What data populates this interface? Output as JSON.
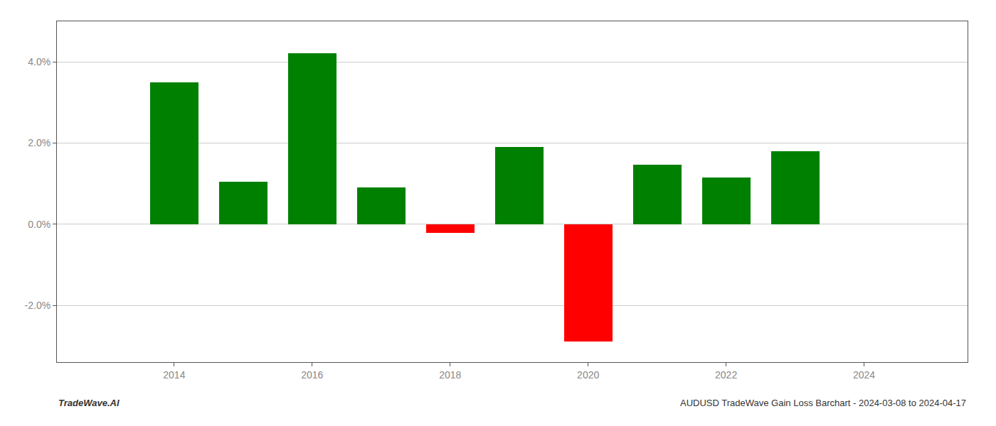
{
  "chart_data": {
    "type": "bar",
    "x": [
      2014,
      2015,
      2016,
      2017,
      2018,
      2019,
      2020,
      2021,
      2022,
      2023
    ],
    "values": [
      0.0349,
      0.0105,
      0.0422,
      0.009,
      -0.0022,
      0.0191,
      -0.029,
      0.0147,
      0.0115,
      0.018
    ],
    "colors": [
      "#008000",
      "#008000",
      "#008000",
      "#008000",
      "#ff0000",
      "#008000",
      "#ff0000",
      "#008000",
      "#008000",
      "#008000"
    ],
    "ylim": [
      -0.034,
      0.05
    ],
    "yticks": [
      {
        "value": -0.02,
        "label": "-2.0%"
      },
      {
        "value": 0.0,
        "label": "0.0%"
      },
      {
        "value": 0.02,
        "label": "2.0%"
      },
      {
        "value": 0.04,
        "label": "4.0%"
      }
    ],
    "xlim": [
      2012.3,
      2025.5
    ],
    "xticks": [
      2014,
      2016,
      2018,
      2020,
      2022,
      2024
    ],
    "grid": true,
    "annotations": [
      "TradeWave.AI",
      "AUDUSD TradeWave Gain Loss Barchart - 2024-03-08 to 2024-04-17"
    ]
  }
}
